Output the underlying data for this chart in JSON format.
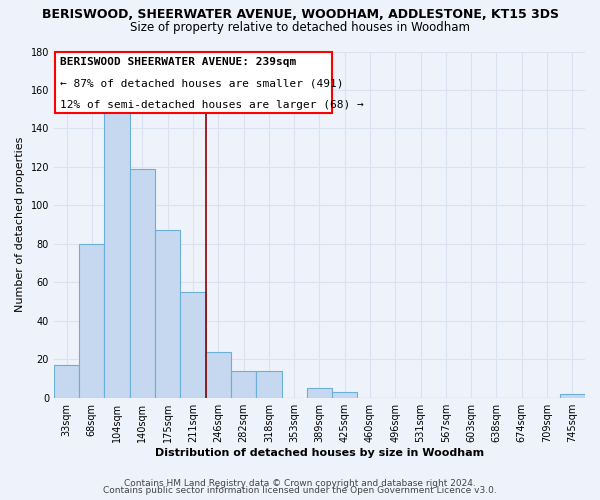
{
  "title1": "BERISWOOD, SHEERWATER AVENUE, WOODHAM, ADDLESTONE, KT15 3DS",
  "title2": "Size of property relative to detached houses in Woodham",
  "xlabel": "Distribution of detached houses by size in Woodham",
  "ylabel": "Number of detached properties",
  "bar_color": "#c5d8f0",
  "bar_edge_color": "#6baed6",
  "categories": [
    "33sqm",
    "68sqm",
    "104sqm",
    "140sqm",
    "175sqm",
    "211sqm",
    "246sqm",
    "282sqm",
    "318sqm",
    "353sqm",
    "389sqm",
    "425sqm",
    "460sqm",
    "496sqm",
    "531sqm",
    "567sqm",
    "603sqm",
    "638sqm",
    "674sqm",
    "709sqm",
    "745sqm"
  ],
  "values": [
    17,
    80,
    150,
    119,
    87,
    55,
    24,
    14,
    14,
    0,
    5,
    3,
    0,
    0,
    0,
    0,
    0,
    0,
    0,
    0,
    2
  ],
  "ylim": [
    0,
    180
  ],
  "yticks": [
    0,
    20,
    40,
    60,
    80,
    100,
    120,
    140,
    160,
    180
  ],
  "prop_line_idx": 6,
  "annotation_title": "BERISWOOD SHEERWATER AVENUE: 239sqm",
  "annotation_line1": "← 87% of detached houses are smaller (491)",
  "annotation_line2": "12% of semi-detached houses are larger (68) →",
  "footer1": "Contains HM Land Registry data © Crown copyright and database right 2024.",
  "footer2": "Contains public sector information licensed under the Open Government Licence v3.0.",
  "background_color": "#eef2fb",
  "grid_color": "#d8e2f0",
  "title_fontsize": 9,
  "subtitle_fontsize": 8.5,
  "axis_label_fontsize": 8,
  "tick_fontsize": 7,
  "annotation_fontsize": 8,
  "footer_fontsize": 6.5
}
